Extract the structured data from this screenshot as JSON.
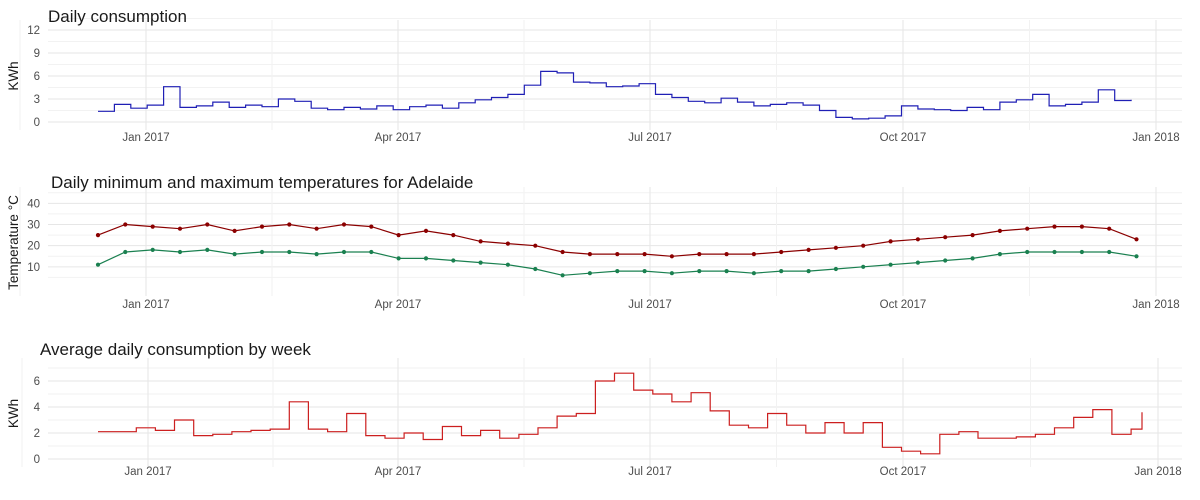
{
  "chart_data": [
    {
      "type": "line",
      "title": "Daily consumption",
      "xlabel": "",
      "ylabel": "KWh",
      "ylim": [
        0,
        12
      ],
      "yticks": [
        "0",
        "3",
        "6",
        "9",
        "12"
      ],
      "xticks": [
        "Jan 2017",
        "Apr 2017",
        "Jul 2017",
        "Oct 2017",
        "Jan 2018"
      ],
      "xrange": [
        "2016-12-14",
        "2017-12-31"
      ],
      "step": true,
      "grid": true,
      "series": [
        {
          "color": "#1f1fb5",
          "points": [
            [
              "2016-12-14",
              1.4
            ],
            [
              "2016-12-20",
              2.3
            ],
            [
              "2016-12-26",
              1.8
            ],
            [
              "2017-01-01",
              2.2
            ],
            [
              "2017-01-07",
              4.6
            ],
            [
              "2017-01-13",
              1.9
            ],
            [
              "2017-01-19",
              2.1
            ],
            [
              "2017-01-25",
              2.6
            ],
            [
              "2017-01-31",
              1.9
            ],
            [
              "2017-02-06",
              2.2
            ],
            [
              "2017-02-12",
              2.0
            ],
            [
              "2017-02-18",
              3.0
            ],
            [
              "2017-02-24",
              2.7
            ],
            [
              "2017-03-02",
              1.8
            ],
            [
              "2017-03-08",
              1.6
            ],
            [
              "2017-03-14",
              1.9
            ],
            [
              "2017-03-20",
              1.7
            ],
            [
              "2017-03-26",
              2.1
            ],
            [
              "2017-04-01",
              1.6
            ],
            [
              "2017-04-07",
              2.0
            ],
            [
              "2017-04-13",
              2.2
            ],
            [
              "2017-04-19",
              1.8
            ],
            [
              "2017-04-25",
              2.5
            ],
            [
              "2017-05-01",
              2.9
            ],
            [
              "2017-05-07",
              3.2
            ],
            [
              "2017-05-13",
              3.6
            ],
            [
              "2017-05-19",
              4.8
            ],
            [
              "2017-05-25",
              6.6
            ],
            [
              "2017-05-31",
              6.4
            ],
            [
              "2017-06-06",
              5.2
            ],
            [
              "2017-06-12",
              5.1
            ],
            [
              "2017-06-18",
              4.6
            ],
            [
              "2017-06-24",
              4.7
            ],
            [
              "2017-06-30",
              5.0
            ],
            [
              "2017-07-06",
              3.6
            ],
            [
              "2017-07-12",
              3.2
            ],
            [
              "2017-07-18",
              2.7
            ],
            [
              "2017-07-24",
              2.5
            ],
            [
              "2017-07-30",
              3.1
            ],
            [
              "2017-08-05",
              2.6
            ],
            [
              "2017-08-11",
              2.1
            ],
            [
              "2017-08-17",
              2.3
            ],
            [
              "2017-08-23",
              2.5
            ],
            [
              "2017-08-29",
              2.2
            ],
            [
              "2017-09-04",
              1.5
            ],
            [
              "2017-09-10",
              0.6
            ],
            [
              "2017-09-16",
              0.4
            ],
            [
              "2017-09-22",
              0.5
            ],
            [
              "2017-09-28",
              0.8
            ],
            [
              "2017-10-04",
              2.1
            ],
            [
              "2017-10-10",
              1.7
            ],
            [
              "2017-10-16",
              1.6
            ],
            [
              "2017-10-22",
              1.5
            ],
            [
              "2017-10-28",
              1.9
            ],
            [
              "2017-11-03",
              1.6
            ],
            [
              "2017-11-09",
              2.6
            ],
            [
              "2017-11-15",
              2.9
            ],
            [
              "2017-11-21",
              3.6
            ],
            [
              "2017-11-27",
              2.1
            ],
            [
              "2017-12-03",
              2.3
            ],
            [
              "2017-12-09",
              2.6
            ],
            [
              "2017-12-15",
              4.2
            ],
            [
              "2017-12-21",
              2.8
            ],
            [
              "2017-12-27",
              2.9
            ]
          ]
        }
      ]
    },
    {
      "type": "line",
      "title": "Daily minimum and maximum temperatures for Adelaide",
      "xlabel": "",
      "ylabel": "Temperature °C",
      "ylim": [
        0,
        43
      ],
      "yticks": [
        "10",
        "20",
        "30",
        "40"
      ],
      "xticks": [
        "Jan 2017",
        "Apr 2017",
        "Jul 2017",
        "Oct 2017",
        "Jan 2018"
      ],
      "xrange": [
        "2016-12-14",
        "2017-12-31"
      ],
      "markers": true,
      "grid": true,
      "series": [
        {
          "color": "#8b0000",
          "points": [
            [
              "2016-12-14",
              25
            ],
            [
              "2016-12-24",
              30
            ],
            [
              "2017-01-03",
              29
            ],
            [
              "2017-01-13",
              28
            ],
            [
              "2017-01-23",
              30
            ],
            [
              "2017-02-02",
              27
            ],
            [
              "2017-02-12",
              29
            ],
            [
              "2017-02-22",
              30
            ],
            [
              "2017-03-04",
              28
            ],
            [
              "2017-03-14",
              30
            ],
            [
              "2017-03-24",
              29
            ],
            [
              "2017-04-03",
              25
            ],
            [
              "2017-04-13",
              27
            ],
            [
              "2017-04-23",
              25
            ],
            [
              "2017-05-03",
              22
            ],
            [
              "2017-05-13",
              21
            ],
            [
              "2017-05-23",
              20
            ],
            [
              "2017-06-02",
              17
            ],
            [
              "2017-06-12",
              16
            ],
            [
              "2017-06-22",
              16
            ],
            [
              "2017-07-02",
              16
            ],
            [
              "2017-07-12",
              15
            ],
            [
              "2017-07-22",
              16
            ],
            [
              "2017-08-01",
              16
            ],
            [
              "2017-08-11",
              16
            ],
            [
              "2017-08-21",
              17
            ],
            [
              "2017-08-31",
              18
            ],
            [
              "2017-09-10",
              19
            ],
            [
              "2017-09-20",
              20
            ],
            [
              "2017-09-30",
              22
            ],
            [
              "2017-10-10",
              23
            ],
            [
              "2017-10-20",
              24
            ],
            [
              "2017-10-30",
              25
            ],
            [
              "2017-11-09",
              27
            ],
            [
              "2017-11-19",
              28
            ],
            [
              "2017-11-29",
              29
            ],
            [
              "2017-12-09",
              29
            ],
            [
              "2017-12-19",
              28
            ],
            [
              "2017-12-29",
              23
            ]
          ]
        },
        {
          "color": "#1a8050",
          "points": [
            [
              "2016-12-14",
              11
            ],
            [
              "2016-12-24",
              17
            ],
            [
              "2017-01-03",
              18
            ],
            [
              "2017-01-13",
              17
            ],
            [
              "2017-01-23",
              18
            ],
            [
              "2017-02-02",
              16
            ],
            [
              "2017-02-12",
              17
            ],
            [
              "2017-02-22",
              17
            ],
            [
              "2017-03-04",
              16
            ],
            [
              "2017-03-14",
              17
            ],
            [
              "2017-03-24",
              17
            ],
            [
              "2017-04-03",
              14
            ],
            [
              "2017-04-13",
              14
            ],
            [
              "2017-04-23",
              13
            ],
            [
              "2017-05-03",
              12
            ],
            [
              "2017-05-13",
              11
            ],
            [
              "2017-05-23",
              9
            ],
            [
              "2017-06-02",
              6
            ],
            [
              "2017-06-12",
              7
            ],
            [
              "2017-06-22",
              8
            ],
            [
              "2017-07-02",
              8
            ],
            [
              "2017-07-12",
              7
            ],
            [
              "2017-07-22",
              8
            ],
            [
              "2017-08-01",
              8
            ],
            [
              "2017-08-11",
              7
            ],
            [
              "2017-08-21",
              8
            ],
            [
              "2017-08-31",
              8
            ],
            [
              "2017-09-10",
              9
            ],
            [
              "2017-09-20",
              10
            ],
            [
              "2017-09-30",
              11
            ],
            [
              "2017-10-10",
              12
            ],
            [
              "2017-10-20",
              13
            ],
            [
              "2017-10-30",
              14
            ],
            [
              "2017-11-09",
              16
            ],
            [
              "2017-11-19",
              17
            ],
            [
              "2017-11-29",
              17
            ],
            [
              "2017-12-09",
              17
            ],
            [
              "2017-12-19",
              17
            ],
            [
              "2017-12-29",
              15
            ]
          ]
        }
      ]
    },
    {
      "type": "line",
      "title": "Average daily consumption by week",
      "xlabel": "",
      "ylabel": "KWh",
      "ylim": [
        0,
        7
      ],
      "yticks": [
        "0",
        "2",
        "4",
        "6"
      ],
      "xticks": [
        "Jan 2017",
        "Apr 2017",
        "Jul 2017",
        "Oct 2017",
        "Jan 2018"
      ],
      "xrange": [
        "2016-12-14",
        "2017-12-31"
      ],
      "step": true,
      "grid": true,
      "series": [
        {
          "color": "#cc1f1f",
          "points": [
            [
              "2016-12-14",
              2.1
            ],
            [
              "2016-12-21",
              2.1
            ],
            [
              "2016-12-28",
              2.4
            ],
            [
              "2017-01-04",
              2.2
            ],
            [
              "2017-01-11",
              3.0
            ],
            [
              "2017-01-18",
              1.8
            ],
            [
              "2017-01-25",
              1.9
            ],
            [
              "2017-02-01",
              2.1
            ],
            [
              "2017-02-08",
              2.2
            ],
            [
              "2017-02-15",
              2.3
            ],
            [
              "2017-02-22",
              4.4
            ],
            [
              "2017-03-01",
              2.3
            ],
            [
              "2017-03-08",
              2.1
            ],
            [
              "2017-03-15",
              3.5
            ],
            [
              "2017-03-22",
              1.8
            ],
            [
              "2017-03-29",
              1.6
            ],
            [
              "2017-04-05",
              2.0
            ],
            [
              "2017-04-12",
              1.5
            ],
            [
              "2017-04-19",
              2.5
            ],
            [
              "2017-04-26",
              1.8
            ],
            [
              "2017-05-03",
              2.2
            ],
            [
              "2017-05-10",
              1.6
            ],
            [
              "2017-05-17",
              1.9
            ],
            [
              "2017-05-24",
              2.4
            ],
            [
              "2017-05-31",
              3.3
            ],
            [
              "2017-06-07",
              3.5
            ],
            [
              "2017-06-14",
              6.0
            ],
            [
              "2017-06-21",
              6.6
            ],
            [
              "2017-06-28",
              5.3
            ],
            [
              "2017-07-05",
              5.0
            ],
            [
              "2017-07-12",
              4.4
            ],
            [
              "2017-07-19",
              5.1
            ],
            [
              "2017-07-26",
              3.7
            ],
            [
              "2017-08-02",
              2.6
            ],
            [
              "2017-08-09",
              2.4
            ],
            [
              "2017-08-16",
              3.5
            ],
            [
              "2017-08-23",
              2.6
            ],
            [
              "2017-08-30",
              2.0
            ],
            [
              "2017-09-06",
              2.8
            ],
            [
              "2017-09-13",
              2.0
            ],
            [
              "2017-09-20",
              2.8
            ],
            [
              "2017-09-27",
              0.9
            ],
            [
              "2017-10-04",
              0.6
            ],
            [
              "2017-10-11",
              0.4
            ],
            [
              "2017-10-18",
              1.9
            ],
            [
              "2017-10-25",
              2.1
            ],
            [
              "2017-11-01",
              1.6
            ],
            [
              "2017-11-08",
              1.6
            ],
            [
              "2017-11-15",
              1.7
            ],
            [
              "2017-11-22",
              1.9
            ],
            [
              "2017-11-29",
              2.4
            ],
            [
              "2017-12-06",
              3.2
            ],
            [
              "2017-12-13",
              3.8
            ],
            [
              "2017-12-20",
              1.9
            ],
            [
              "2017-12-27",
              2.3
            ],
            [
              "2017-12-31",
              3.6
            ]
          ]
        }
      ]
    }
  ]
}
